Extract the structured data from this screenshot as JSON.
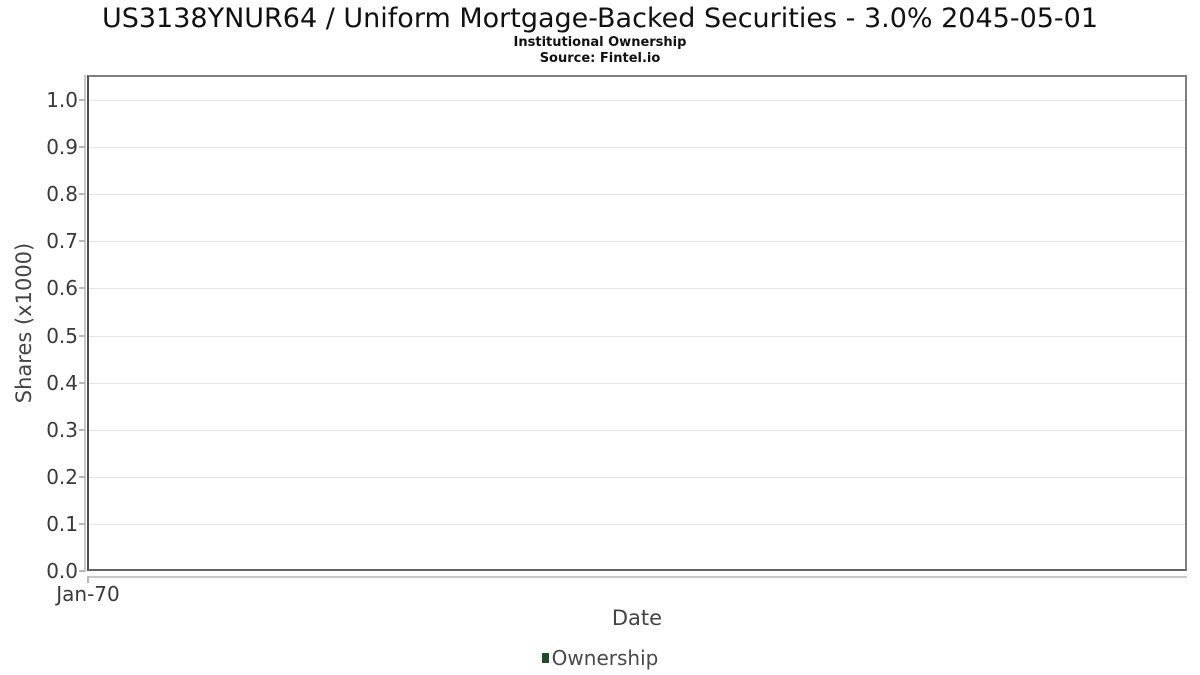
{
  "header": {
    "title": "US3138YNUR64 / Uniform Mortgage-Backed Securities - 3.0% 2045-05-01",
    "subtitle": "Institutional Ownership",
    "source": "Source: Fintel.io"
  },
  "chart_data": {
    "type": "line",
    "title": "US3138YNUR64 / Uniform Mortgage-Backed Securities - 3.0% 2045-05-01",
    "subtitle": "Institutional Ownership",
    "source": "Source: Fintel.io",
    "xlabel": "Date",
    "ylabel": "Shares (x1000)",
    "x_ticks": [
      "Jan-70"
    ],
    "y_ticks": [
      "1.0",
      "0.9",
      "0.8",
      "0.7",
      "0.6",
      "0.5",
      "0.4",
      "0.3",
      "0.2",
      "0.1",
      "0.0"
    ],
    "ylim": [
      0.0,
      1.05
    ],
    "grid": true,
    "grid_color": "#e6e6e6",
    "legend_position": "bottom-center",
    "legend": [
      {
        "label": "Ownership",
        "color": "#1d4d2b"
      }
    ],
    "series": [
      {
        "name": "Ownership",
        "x": [],
        "y": []
      }
    ]
  }
}
